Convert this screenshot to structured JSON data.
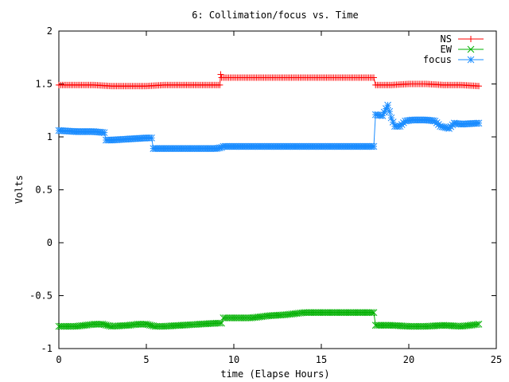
{
  "chart_data": {
    "type": "line",
    "title": "6: Collimation/focus vs. Time",
    "xlabel": "time (Elapse Hours)",
    "ylabel": "Volts",
    "xlim": [
      0,
      25
    ],
    "ylim": [
      -1,
      2
    ],
    "xticks": [
      0,
      5,
      10,
      15,
      20,
      25
    ],
    "yticks": [
      -1,
      -0.5,
      0,
      0.5,
      1,
      1.5,
      2
    ],
    "xtick_labels": [
      "0",
      "5",
      "10",
      "15",
      "20",
      "25"
    ],
    "ytick_labels": [
      "-1",
      "-0.5",
      "0",
      "0.5",
      "1",
      "1.5",
      "2"
    ],
    "grid": false,
    "legend_position": "top-right",
    "series": [
      {
        "name": "NS",
        "color": "#ff0000",
        "marker": "plus",
        "points": [
          [
            0,
            1.49
          ],
          [
            1,
            1.49
          ],
          [
            2,
            1.49
          ],
          [
            3,
            1.48
          ],
          [
            4,
            1.48
          ],
          [
            5,
            1.48
          ],
          [
            6,
            1.49
          ],
          [
            7,
            1.49
          ],
          [
            8,
            1.49
          ],
          [
            9.2,
            1.49
          ],
          [
            9.25,
            1.59
          ],
          [
            9.3,
            1.56
          ],
          [
            10,
            1.56
          ],
          [
            11,
            1.56
          ],
          [
            12,
            1.56
          ],
          [
            13,
            1.56
          ],
          [
            14,
            1.56
          ],
          [
            15,
            1.56
          ],
          [
            16,
            1.56
          ],
          [
            17,
            1.56
          ],
          [
            18,
            1.56
          ],
          [
            18.1,
            1.49
          ],
          [
            19,
            1.49
          ],
          [
            20,
            1.5
          ],
          [
            21,
            1.5
          ],
          [
            22,
            1.49
          ],
          [
            23,
            1.49
          ],
          [
            24,
            1.48
          ]
        ]
      },
      {
        "name": "EW",
        "color": "#00b000",
        "marker": "cross",
        "points": [
          [
            0,
            -0.79
          ],
          [
            1,
            -0.79
          ],
          [
            2,
            -0.77
          ],
          [
            2.5,
            -0.77
          ],
          [
            3,
            -0.79
          ],
          [
            4,
            -0.78
          ],
          [
            4.5,
            -0.77
          ],
          [
            5,
            -0.77
          ],
          [
            5.5,
            -0.79
          ],
          [
            6,
            -0.79
          ],
          [
            7,
            -0.78
          ],
          [
            8,
            -0.77
          ],
          [
            9,
            -0.76
          ],
          [
            9.3,
            -0.76
          ],
          [
            9.4,
            -0.71
          ],
          [
            10,
            -0.71
          ],
          [
            11,
            -0.71
          ],
          [
            12,
            -0.69
          ],
          [
            13,
            -0.68
          ],
          [
            14,
            -0.66
          ],
          [
            15,
            -0.66
          ],
          [
            16,
            -0.66
          ],
          [
            17,
            -0.66
          ],
          [
            18,
            -0.66
          ],
          [
            18.1,
            -0.78
          ],
          [
            19,
            -0.78
          ],
          [
            20,
            -0.79
          ],
          [
            21,
            -0.79
          ],
          [
            22,
            -0.78
          ],
          [
            23,
            -0.79
          ],
          [
            24,
            -0.77
          ]
        ]
      },
      {
        "name": "focus",
        "color": "#1a8cff",
        "marker": "star",
        "points": [
          [
            0,
            1.06
          ],
          [
            1,
            1.05
          ],
          [
            2,
            1.05
          ],
          [
            2.6,
            1.04
          ],
          [
            2.7,
            0.97
          ],
          [
            3,
            0.97
          ],
          [
            4,
            0.98
          ],
          [
            5,
            0.99
          ],
          [
            5.3,
            0.99
          ],
          [
            5.4,
            0.89
          ],
          [
            6,
            0.89
          ],
          [
            7,
            0.89
          ],
          [
            8,
            0.89
          ],
          [
            9,
            0.89
          ],
          [
            9.3,
            0.9
          ],
          [
            9.4,
            0.91
          ],
          [
            10,
            0.91
          ],
          [
            11,
            0.91
          ],
          [
            12,
            0.91
          ],
          [
            13,
            0.91
          ],
          [
            14,
            0.91
          ],
          [
            15,
            0.91
          ],
          [
            16,
            0.91
          ],
          [
            17,
            0.91
          ],
          [
            18,
            0.91
          ],
          [
            18.1,
            1.21
          ],
          [
            18.5,
            1.2
          ],
          [
            18.8,
            1.3
          ],
          [
            19,
            1.18
          ],
          [
            19.2,
            1.1
          ],
          [
            19.5,
            1.1
          ],
          [
            19.8,
            1.15
          ],
          [
            20.2,
            1.16
          ],
          [
            21,
            1.16
          ],
          [
            21.5,
            1.15
          ],
          [
            21.8,
            1.1
          ],
          [
            22.3,
            1.08
          ],
          [
            22.6,
            1.13
          ],
          [
            23,
            1.12
          ],
          [
            24,
            1.13
          ]
        ]
      }
    ]
  }
}
